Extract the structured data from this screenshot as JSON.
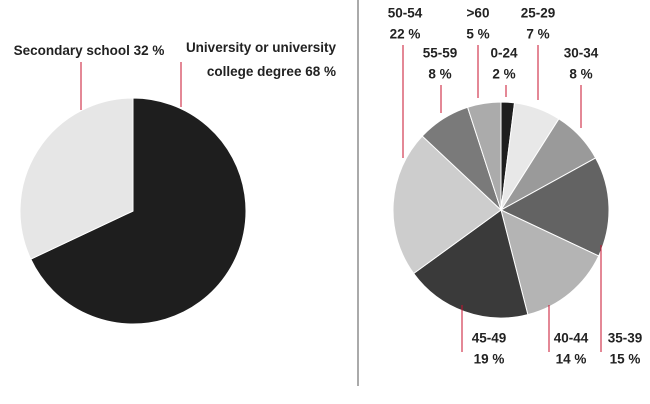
{
  "chart_data": [
    {
      "type": "pie",
      "categories": [
        "University or university college degree",
        "Secondary school"
      ],
      "values": [
        68,
        32
      ],
      "value_labels": [
        "68 %",
        "32 %"
      ],
      "colors": [
        "#1e1e1e",
        "#e6e6e6"
      ]
    },
    {
      "type": "pie",
      "categories": [
        "0-24",
        "25-29",
        "30-34",
        "35-39",
        "40-44",
        "45-49",
        "50-54",
        "55-59",
        ">60"
      ],
      "values": [
        2,
        7,
        8,
        15,
        14,
        19,
        22,
        8,
        5
      ],
      "value_labels": [
        "2 %",
        "7 %",
        "8 %",
        "15 %",
        "14 %",
        "19 %",
        "22 %",
        "8 %",
        "5 %"
      ],
      "colors": [
        "#1e1e1e",
        "#e8e8e8",
        "#9a9a9a",
        "#636363",
        "#b4b4b4",
        "#3a3a3a",
        "#cdcdcd",
        "#7a7a7a",
        "#ababab"
      ]
    }
  ]
}
